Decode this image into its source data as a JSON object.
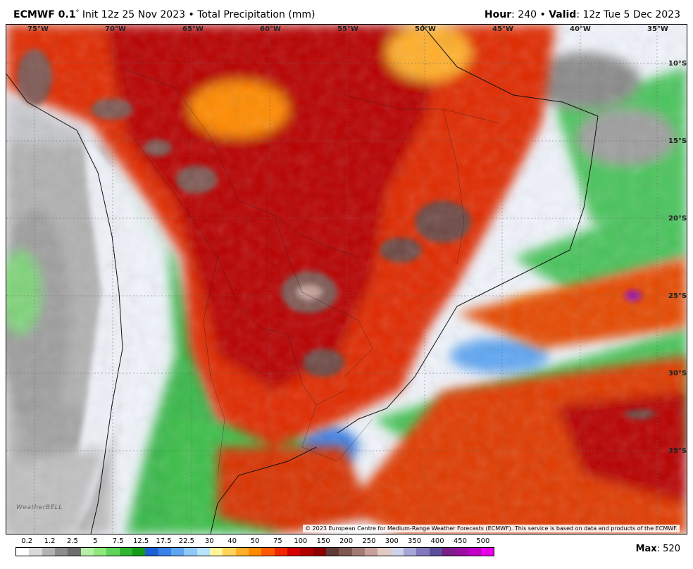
{
  "header": {
    "model": "ECMWF 0.1",
    "degree": "°",
    "init": "Init 12z 25 Nov 2023",
    "bullet": "•",
    "product": "Total Precipitation (mm)",
    "hour_label": "Hour",
    "hour_value": ": 240",
    "valid_label": "Valid",
    "valid_value": ": 12z Tue 5 Dec 2023"
  },
  "map": {
    "lon_labels": [
      "75°W",
      "70°W",
      "65°W",
      "60°W",
      "55°W",
      "50°W",
      "45°W",
      "40°W",
      "35°W"
    ],
    "lat_labels": [
      "10°S",
      "15°S",
      "20°S",
      "25°S",
      "30°S",
      "35°S"
    ],
    "credit": "© 2023 European Centre for Medium-Range Weather Forecasts (ECMWF). This service is based on data and products of the ECMWF.",
    "logo": "WeatherBELL"
  },
  "legend": {
    "ticks": [
      "0.2",
      "1.2",
      "2.5",
      "5",
      "7.5",
      "12.5",
      "17.5",
      "22.5",
      "30",
      "40",
      "50",
      "75",
      "100",
      "150",
      "200",
      "250",
      "300",
      "350",
      "400",
      "450",
      "500"
    ],
    "colors": [
      "#ffffff",
      "#d9d9d9",
      "#b3b3b3",
      "#8c8c8c",
      "#6e6e6e",
      "#b4f0a8",
      "#8fe87e",
      "#5fd35a",
      "#2fb52f",
      "#169a1a",
      "#1e5fd6",
      "#3a82e8",
      "#5fa6f2",
      "#8ec8f8",
      "#b9e2fb",
      "#fff59a",
      "#ffd35a",
      "#ffae2a",
      "#ff8a00",
      "#ff5a00",
      "#f02800",
      "#d40000",
      "#b00000",
      "#8c0000",
      "#5e3b37",
      "#7f5852",
      "#a37b74",
      "#c6a09a",
      "#e3c8c4",
      "#cfd0ea",
      "#a8a6d6",
      "#8179bd",
      "#5e4c9c",
      "#7a1f86",
      "#9a0ea0",
      "#c000c4",
      "#e600e6"
    ],
    "max_label": "Max",
    "max_value": ": 520"
  }
}
